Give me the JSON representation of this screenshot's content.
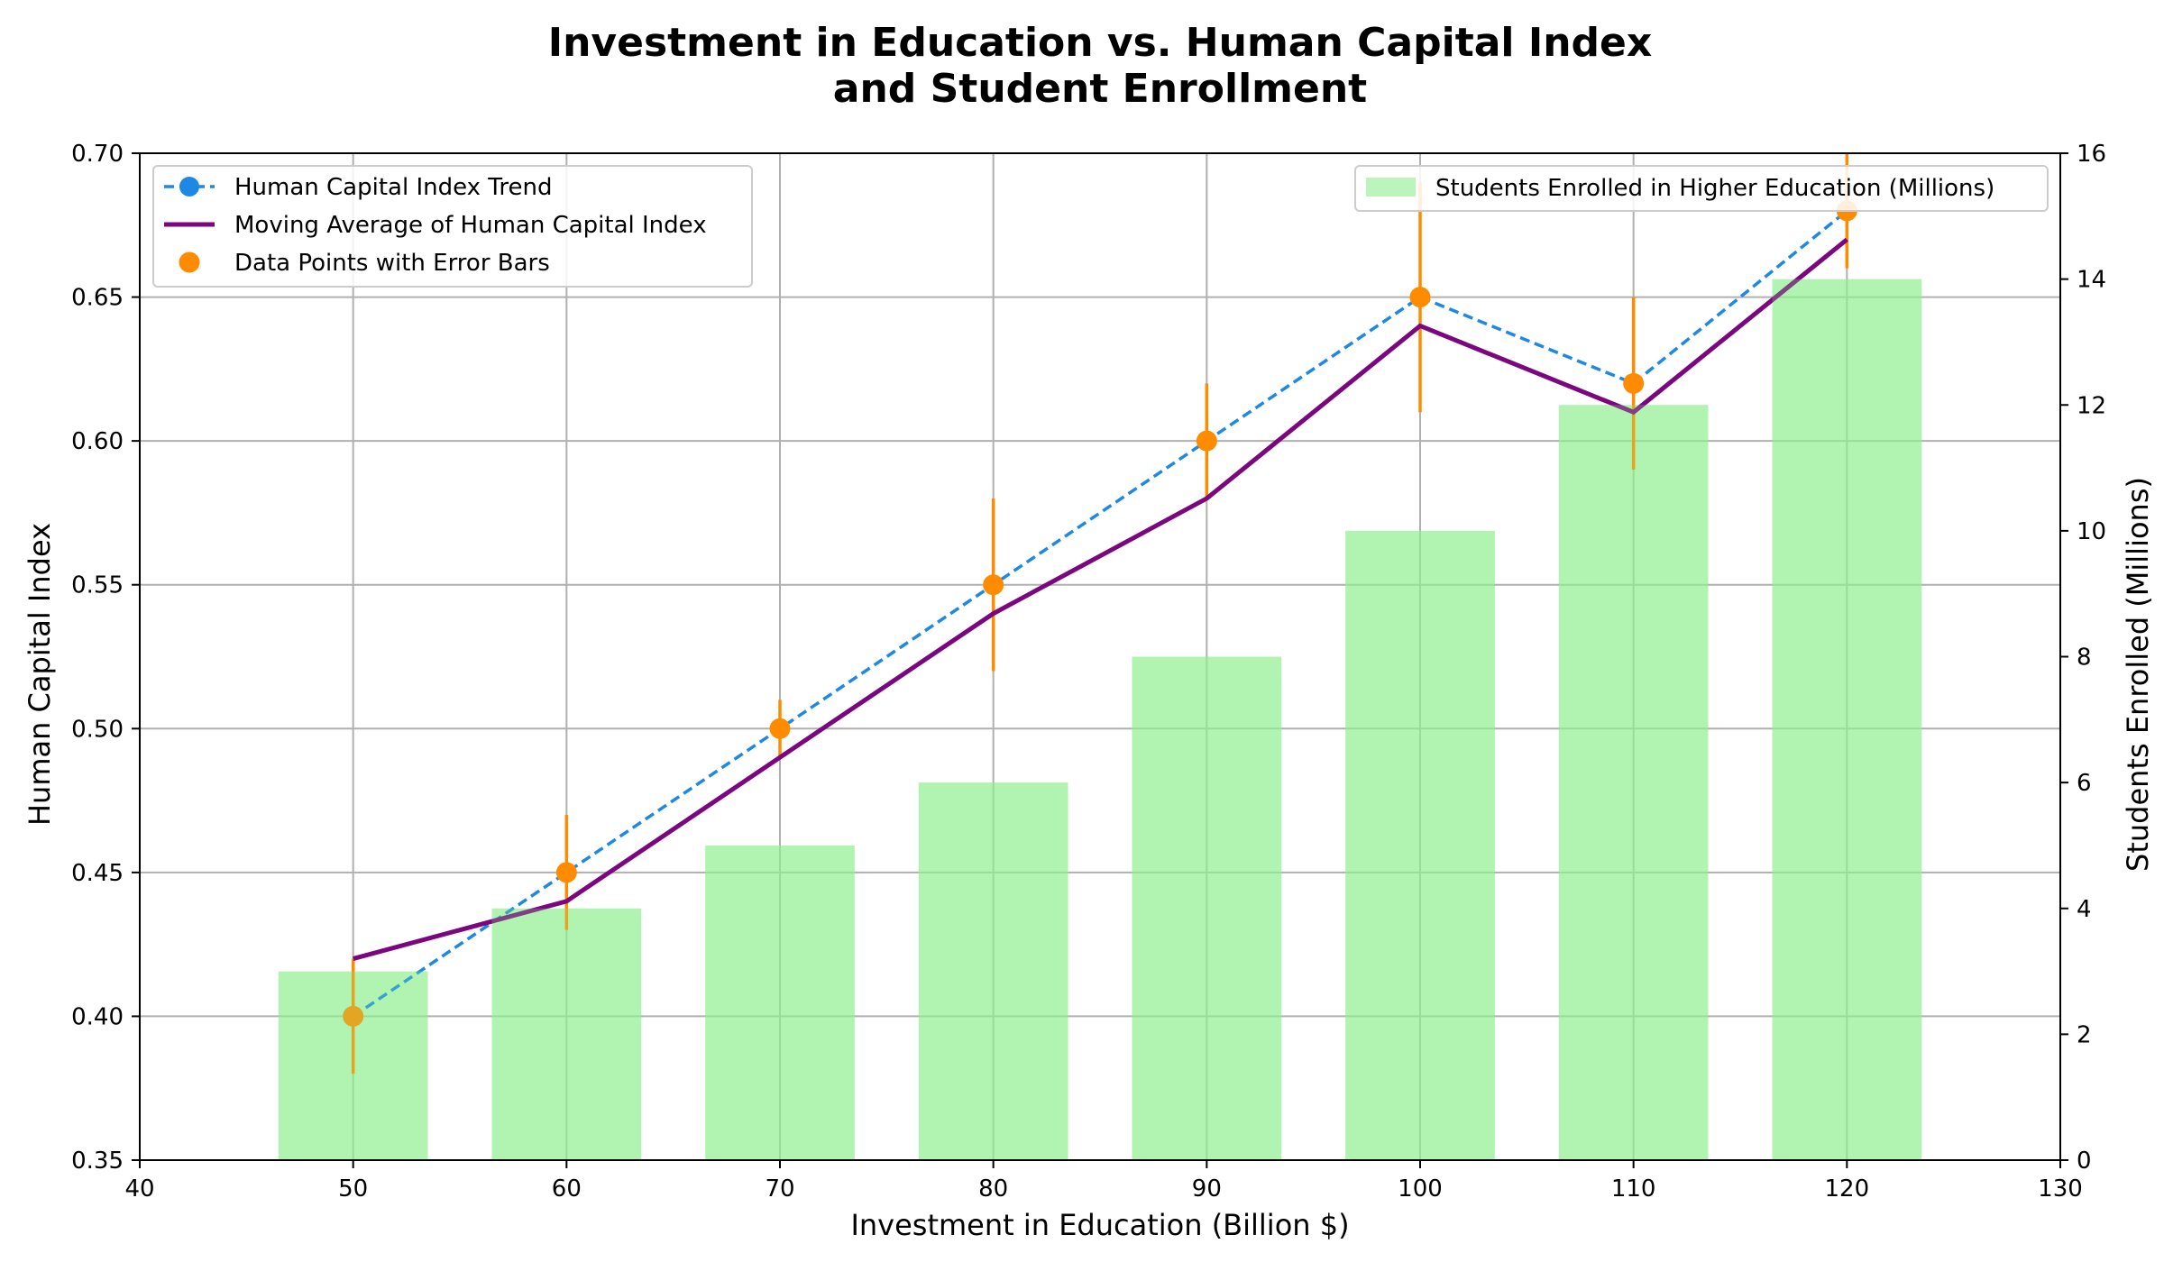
{
  "chart_data": {
    "type": "bar+line",
    "title_line1": "Investment in Education vs. Human Capital Index",
    "title_line2": "and Student Enrollment",
    "xlabel": "Investment in Education (Billion $)",
    "ylabel_left": "Human Capital Index",
    "ylabel_right": "Students Enrolled (Millions)",
    "xlim": [
      40,
      130
    ],
    "ylim_left": [
      0.35,
      0.7
    ],
    "ylim_right": [
      0,
      16
    ],
    "xticks": [
      40,
      50,
      60,
      70,
      80,
      90,
      100,
      110,
      120,
      130
    ],
    "yticks_left": [
      "0.35",
      "0.40",
      "0.45",
      "0.50",
      "0.55",
      "0.60",
      "0.65",
      "0.70"
    ],
    "yticks_right": [
      0,
      2,
      4,
      6,
      8,
      10,
      12,
      14,
      16
    ],
    "grid": true,
    "x": [
      50,
      60,
      70,
      80,
      90,
      100,
      110,
      120
    ],
    "series": [
      {
        "name": "Human Capital Index Trend",
        "kind": "line-dashed-markers",
        "axis": "left",
        "color": "#1e88e5",
        "values": [
          0.4,
          0.45,
          0.5,
          0.55,
          0.6,
          0.65,
          0.62,
          0.68
        ]
      },
      {
        "name": "Moving Average of Human Capital Index",
        "kind": "line",
        "axis": "left",
        "color": "#7b0680",
        "values": [
          0.42,
          0.44,
          0.49,
          0.54,
          0.58,
          0.64,
          0.61,
          0.67
        ]
      },
      {
        "name": "Data Points with Error Bars",
        "kind": "errorbar",
        "axis": "left",
        "color": "#ff8c00",
        "values": [
          0.4,
          0.45,
          0.5,
          0.55,
          0.6,
          0.65,
          0.62,
          0.68
        ],
        "errors": [
          0.02,
          0.02,
          0.01,
          0.03,
          0.02,
          0.04,
          0.03,
          0.02
        ]
      },
      {
        "name": "Students Enrolled in Higher Education (Millions)",
        "kind": "bar",
        "axis": "right",
        "color": "#90ee90",
        "values": [
          3,
          4,
          5,
          6,
          8,
          10,
          12,
          14
        ]
      }
    ],
    "legend_left_position": "top-left",
    "legend_right_position": "top-right"
  }
}
